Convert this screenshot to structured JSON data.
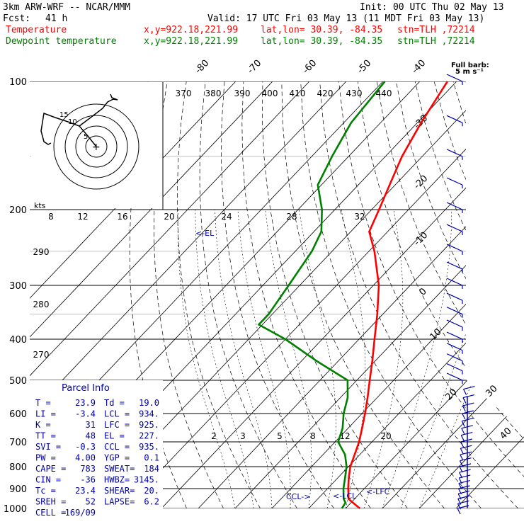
{
  "header": {
    "model": "3km ARW-WRF -- NCAR/MMM",
    "init": "Init: 00 UTC Thu 02 May 13",
    "fcst_label": "Fcst:",
    "fcst_value": "41 h",
    "valid": "Valid: 17 UTC Fri 03 May 13 (11 MDT Fri 03 May 13)",
    "temp_label": "Temperature",
    "dew_label": "Dewpoint temperature",
    "xy": "x,y=922.18,221.99",
    "latlon": "lat,lon= 30.39, -84.35",
    "stn": "stn=TLH ,72214",
    "full_barb": "Full barb:",
    "full_barb_units": "5 m s⁻¹"
  },
  "colors": {
    "temperature": "#ff0000",
    "dewpoint": "#008000",
    "info": "#0000aa",
    "wind": "#0000aa",
    "grid": "#000000"
  },
  "parcel_info": {
    "title": "Parcel Info",
    "rows": [
      [
        "T  =",
        "23.9",
        "Td =",
        "19.0"
      ],
      [
        "LI =",
        "-3.4",
        "LCL =",
        "934."
      ],
      [
        "K  =",
        "31",
        "LFC =",
        "925."
      ],
      [
        "TT =",
        "48",
        "EL =",
        "227."
      ],
      [
        "SVI =",
        "-0.3",
        "CCL =",
        "935."
      ],
      [
        "PW =",
        "4.00",
        "YGP =",
        "0.1"
      ],
      [
        "CAPE =",
        "783",
        "SWEAT=",
        "184"
      ],
      [
        "CIN =",
        "-36",
        "HWBZ=",
        "3145."
      ],
      [
        "Tc =",
        "23.4",
        "SHEAR=",
        "20."
      ],
      [
        "SREH =",
        "52",
        "LAPSE=",
        "6.2"
      ],
      [
        "CELL =",
        "169/09",
        "",
        ""
      ]
    ]
  },
  "annotations": {
    "el": "<-EL",
    "ccl": "CCL->",
    "lcl": "<-LCL",
    "lfc": "<-LFC",
    "kts": "kts"
  },
  "hodograph": {
    "rings": [
      "5",
      "10",
      "15"
    ]
  },
  "chart_data": {
    "type": "skew-t log-p sounding",
    "title": "3km ARW-WRF -- NCAR/MMM",
    "pressure_levels": [
      100,
      200,
      300,
      400,
      500,
      600,
      700,
      800,
      900,
      1000
    ],
    "pressure_labels": [
      "100",
      "200",
      "300",
      "400",
      "500",
      "600",
      "700",
      "800",
      "900",
      "1000"
    ],
    "isotherm_labels": [
      -80,
      -70,
      -60,
      -50,
      -40,
      -30,
      -20,
      -10,
      0,
      10,
      20,
      30,
      40
    ],
    "theta_labels": [
      "370",
      "380",
      "390",
      "400",
      "410",
      "420",
      "430",
      "440"
    ],
    "mixing_ratio_labels": [
      "8",
      "12",
      "16",
      "20",
      "24",
      "28",
      "32"
    ],
    "mixing_ratio_labels_low": [
      "2",
      "3",
      "5",
      "8",
      "12",
      "20"
    ],
    "dry_adiabat_labels": [
      "290",
      "280",
      "270"
    ],
    "series": [
      {
        "name": "Temperature",
        "color": "#ff0000",
        "points": [
          [
            1000,
            23.9
          ],
          [
            970,
            20.5
          ],
          [
            950,
            18.3
          ],
          [
            925,
            17.0
          ],
          [
            900,
            15.6
          ],
          [
            850,
            13.0
          ],
          [
            800,
            10.5
          ],
          [
            750,
            8.6
          ],
          [
            700,
            6.5
          ],
          [
            650,
            3.8
          ],
          [
            600,
            0.8
          ],
          [
            550,
            -2.6
          ],
          [
            500,
            -6.5
          ],
          [
            450,
            -10.8
          ],
          [
            400,
            -15.8
          ],
          [
            350,
            -21.5
          ],
          [
            300,
            -28.5
          ],
          [
            250,
            -38.5
          ],
          [
            225,
            -45.0
          ],
          [
            200,
            -48.0
          ],
          [
            175,
            -51.5
          ],
          [
            150,
            -55.5
          ],
          [
            125,
            -59.0
          ],
          [
            100,
            -62.5
          ]
        ]
      },
      {
        "name": "Dewpoint temperature",
        "color": "#008000",
        "points": [
          [
            1000,
            19.0
          ],
          [
            970,
            18.5
          ],
          [
            950,
            17.0
          ],
          [
            900,
            14.3
          ],
          [
            850,
            12.0
          ],
          [
            800,
            9.5
          ],
          [
            750,
            6.0
          ],
          [
            700,
            0.8
          ],
          [
            650,
            -1.5
          ],
          [
            600,
            -5.0
          ],
          [
            550,
            -8.0
          ],
          [
            500,
            -12.5
          ],
          [
            450,
            -26.0
          ],
          [
            400,
            -40.0
          ],
          [
            370,
            -51.0
          ],
          [
            350,
            -51.0
          ],
          [
            300,
            -53.0
          ],
          [
            250,
            -55.5
          ],
          [
            225,
            -58.0
          ],
          [
            200,
            -63.5
          ],
          [
            175,
            -71.0
          ],
          [
            150,
            -74.5
          ],
          [
            125,
            -78.0
          ],
          [
            100,
            -79.5
          ]
        ]
      }
    ],
    "legend": "top-left",
    "grid": true
  }
}
